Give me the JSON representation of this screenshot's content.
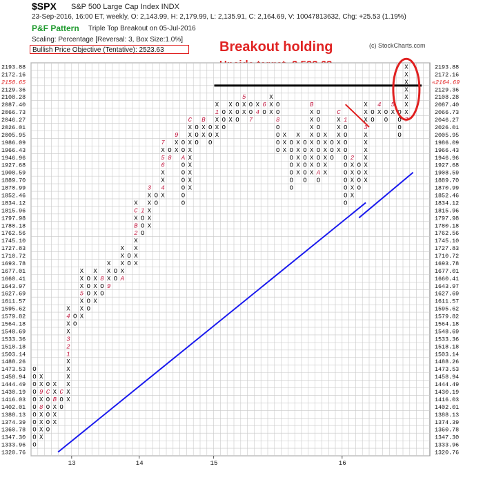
{
  "header": {
    "symbol": "$SPX",
    "index_name": "S&P 500 Large Cap Index  INDX",
    "quote_line": "23-Sep-2016, 16:00 ET, weekly, O: 2,143.99, H: 2,179.99, L: 2,135.91, C: 2,164.69, V: 10047813632, Chg: +25.53 (1.19%)",
    "pattern_label": "P&F Pattern",
    "pattern_desc": "Triple Top Breakout on 05-Jul-2016",
    "scaling": "Scaling: Percentage [Reversal: 3, Box Size:1.0%]",
    "objective": "Bullish Price Objective (Tentative): 2523.63",
    "copyright": "(c) StockCharts.com"
  },
  "annotations": {
    "title": "Breakout holding",
    "subtitle": "Upside target: 2,523.63",
    "accent_color": "#e02424"
  },
  "chart_data": {
    "type": "point-and-figure",
    "box_values": [
      "2193.88",
      "2172.16",
      "2150.65",
      "2129.36",
      "2108.28",
      "2087.40",
      "2066.73",
      "2046.27",
      "2026.01",
      "2005.95",
      "1986.09",
      "1966.43",
      "1946.96",
      "1927.68",
      "1908.59",
      "1889.70",
      "1870.99",
      "1852.46",
      "1834.12",
      "1815.96",
      "1797.98",
      "1780.18",
      "1762.56",
      "1745.10",
      "1727.83",
      "1710.72",
      "1693.78",
      "1677.01",
      "1660.41",
      "1643.97",
      "1627.69",
      "1611.57",
      "1595.62",
      "1579.82",
      "1564.18",
      "1548.69",
      "1533.36",
      "1518.18",
      "1503.14",
      "1488.26",
      "1473.53",
      "1458.94",
      "1444.49",
      "1430.19",
      "1416.03",
      "1402.01",
      "1388.13",
      "1374.39",
      "1360.78",
      "1347.30",
      "1333.96",
      "1320.76"
    ],
    "current_price": "2164.69",
    "current_price_box": "2150.65",
    "x_tick_labels": [
      {
        "label": "13",
        "col": 6
      },
      {
        "label": "14",
        "col": 16
      },
      {
        "label": "15",
        "col": 27
      },
      {
        "label": "16",
        "col": 46
      }
    ],
    "columns": [
      {
        "col": 0,
        "type": "O",
        "top": "1473.53",
        "bottom": "1333.96"
      },
      {
        "col": 1,
        "type": "X",
        "top": "1458.94",
        "bottom": "1347.30",
        "marks": {
          "1430.19": "9",
          "1402.01": "8"
        }
      },
      {
        "col": 2,
        "type": "O",
        "top": "1444.49",
        "bottom": "1360.78",
        "marks": {
          "1430.19": "C"
        }
      },
      {
        "col": 3,
        "type": "X",
        "top": "1444.49",
        "bottom": "1374.39",
        "marks": {
          "1458.94": "A",
          "1416.03": "B"
        }
      },
      {
        "col": 4,
        "type": "O",
        "top": "1430.19",
        "bottom": "1402.01",
        "marks": {
          "1430.19": "C"
        }
      },
      {
        "col": 5,
        "type": "X",
        "top": "1595.62",
        "bottom": "1416.03",
        "marks": {
          "1503.14": "1",
          "1518.18": "2",
          "1533.36": "3",
          "1579.82": "4"
        }
      },
      {
        "col": 6,
        "type": "O",
        "top": "1579.82",
        "bottom": "1564.18"
      },
      {
        "col": 7,
        "type": "X",
        "top": "1677.01",
        "bottom": "1579.82",
        "marks": {
          "1627.69": "5"
        }
      },
      {
        "col": 8,
        "type": "O",
        "top": "1660.41",
        "bottom": "1595.62"
      },
      {
        "col": 9,
        "type": "X",
        "top": "1677.01",
        "bottom": "1611.57",
        "marks": {
          "1579.82": "7"
        }
      },
      {
        "col": 10,
        "type": "O",
        "top": "1660.41",
        "bottom": "1627.69",
        "marks": {
          "1660.41": "8"
        }
      },
      {
        "col": 11,
        "type": "X",
        "top": "1693.78",
        "bottom": "1643.97",
        "marks": {
          "1643.97": "9"
        }
      },
      {
        "col": 12,
        "type": "O",
        "top": "1677.01",
        "bottom": "1660.41"
      },
      {
        "col": 13,
        "type": "X",
        "top": "1727.83",
        "bottom": "1660.41",
        "marks": {
          "1660.41": "A"
        }
      },
      {
        "col": 14,
        "type": "O",
        "top": "1710.72",
        "bottom": "1693.78"
      },
      {
        "col": 15,
        "type": "X",
        "top": "1834.12",
        "bottom": "1693.78",
        "marks": {
          "1762.56": "2",
          "1780.18": "B",
          "1815.96": "C"
        }
      },
      {
        "col": 16,
        "type": "O",
        "top": "1815.96",
        "bottom": "1762.56",
        "marks": {
          "1815.96": "1"
        }
      },
      {
        "col": 17,
        "type": "X",
        "top": "1870.99",
        "bottom": "1780.18",
        "marks": {
          "1870.99": "3"
        }
      },
      {
        "col": 18,
        "type": "O",
        "top": "1852.46",
        "bottom": "1834.12"
      },
      {
        "col": 19,
        "type": "X",
        "top": "1986.09",
        "bottom": "1852.46",
        "marks": {
          "1870.99": "4",
          "1946.96": "5",
          "1927.68": "6",
          "1986.09": "7"
        }
      },
      {
        "col": 20,
        "type": "O",
        "top": "1966.43",
        "bottom": "1946.96",
        "marks": {
          "1946.96": "8"
        }
      },
      {
        "col": 21,
        "type": "X",
        "top": "2005.95",
        "bottom": "1966.43",
        "marks": {
          "2005.95": "9"
        }
      },
      {
        "col": 22,
        "type": "O",
        "top": "1986.09",
        "bottom": "1834.12",
        "marks": {
          "1946.96": "A"
        }
      },
      {
        "col": 23,
        "type": "X",
        "top": "2046.27",
        "bottom": "1870.99",
        "marks": {
          "2046.27": "C"
        }
      },
      {
        "col": 24,
        "type": "O",
        "top": "2026.01",
        "bottom": "1986.09"
      },
      {
        "col": 25,
        "type": "X",
        "top": "2046.27",
        "bottom": "2005.95",
        "marks": {
          "2046.27": "B"
        }
      },
      {
        "col": 26,
        "type": "O",
        "top": "2026.01",
        "bottom": "1986.09"
      },
      {
        "col": 27,
        "type": "X",
        "top": "2087.40",
        "bottom": "2005.95",
        "marks": {
          "1986.09": "2",
          "2066.73": "1"
        }
      },
      {
        "col": 28,
        "type": "O",
        "top": "2066.73",
        "bottom": "2026.01"
      },
      {
        "col": 29,
        "type": "X",
        "top": "2087.40",
        "bottom": "2046.27"
      },
      {
        "col": 30,
        "type": "O",
        "top": "2087.40",
        "bottom": "2046.27"
      },
      {
        "col": 31,
        "type": "X",
        "top": "2108.28",
        "bottom": "2066.73",
        "marks": {
          "2108.28": "5"
        }
      },
      {
        "col": 32,
        "type": "O",
        "top": "2087.40",
        "bottom": "2046.27",
        "marks": {
          "2046.27": "7"
        }
      },
      {
        "col": 33,
        "type": "X",
        "top": "2087.40",
        "bottom": "2066.73",
        "marks": {
          "2066.73": "4"
        }
      },
      {
        "col": 34,
        "type": "O",
        "top": "2087.40",
        "bottom": "2066.73",
        "marks": {
          "2087.40": "6"
        }
      },
      {
        "col": 35,
        "type": "X",
        "top": "2108.28",
        "bottom": "2066.73"
      },
      {
        "col": 36,
        "type": "O",
        "top": "2087.40",
        "bottom": "1966.43",
        "marks": {
          "2046.27": "8"
        }
      },
      {
        "col": 37,
        "type": "X",
        "top": "2005.95",
        "bottom": "1966.43"
      },
      {
        "col": 38,
        "type": "O",
        "top": "1986.09",
        "bottom": "1870.99"
      },
      {
        "col": 39,
        "type": "X",
        "top": "2005.95",
        "bottom": "1908.59"
      },
      {
        "col": 40,
        "type": "O",
        "top": "1986.09",
        "bottom": "1889.70"
      },
      {
        "col": 41,
        "type": "X",
        "top": "2087.40",
        "bottom": "1908.59",
        "marks": {
          "2087.40": "B"
        }
      },
      {
        "col": 42,
        "type": "O",
        "top": "2066.73",
        "bottom": "1889.70",
        "marks": {
          "1908.59": "A"
        }
      },
      {
        "col": 43,
        "type": "X",
        "top": "2005.95",
        "bottom": "1908.59"
      },
      {
        "col": 44,
        "type": "O",
        "top": "1986.09",
        "bottom": "1946.96"
      },
      {
        "col": 45,
        "type": "X",
        "top": "2066.73",
        "bottom": "1966.43",
        "marks": {
          "2066.73": "C"
        }
      },
      {
        "col": 46,
        "type": "O",
        "top": "2046.27",
        "bottom": "1834.12",
        "marks": {
          "2046.27": "1"
        }
      },
      {
        "col": 47,
        "type": "X",
        "top": "1946.96",
        "bottom": "1852.46",
        "marks": {
          "1946.96": "2"
        }
      },
      {
        "col": 48,
        "type": "O",
        "top": "1927.68",
        "bottom": "1870.99"
      },
      {
        "col": 49,
        "type": "X",
        "top": "2087.40",
        "bottom": "1889.70",
        "marks": {
          "2026.01": "3"
        }
      },
      {
        "col": 50,
        "type": "O",
        "top": "2066.73",
        "bottom": "2046.27"
      },
      {
        "col": 51,
        "type": "X",
        "top": "2087.40",
        "bottom": "2066.73",
        "marks": {
          "2087.40": "4"
        }
      },
      {
        "col": 52,
        "type": "O",
        "top": "2066.73",
        "bottom": "2046.27"
      },
      {
        "col": 53,
        "type": "X",
        "top": "2087.40",
        "bottom": "2066.73",
        "marks": {
          "2087.40": "5"
        }
      },
      {
        "col": 54,
        "type": "O",
        "top": "2066.73",
        "bottom": "2005.95",
        "marks": {
          "2087.40": "6"
        }
      },
      {
        "col": 55,
        "type": "X",
        "top": "2193.88",
        "bottom": "2046.27",
        "marks": {
          "2046.27": "7"
        }
      }
    ],
    "resistance_level": "2129.36",
    "trendlines": [
      {
        "kind": "bullish-support",
        "from": {
          "col": 3.5,
          "value": "1320.76"
        },
        "to": {
          "col": 49,
          "value": "1834.12"
        }
      },
      {
        "kind": "bullish-support",
        "from": {
          "col": 48,
          "value": "1797.98"
        },
        "to": {
          "col": 56,
          "value": "1908.59"
        }
      },
      {
        "kind": "bearish-resistance",
        "from": {
          "col": 46,
          "value": "2087.40"
        },
        "to": {
          "col": 49.5,
          "value": "2026.01"
        }
      }
    ],
    "colors": {
      "x_mark": "#000000",
      "o_mark": "#000000",
      "month_mark": "#c0143c",
      "trendline": "#1a1aee",
      "resistance": "#000000",
      "highlight": "#e02020"
    }
  }
}
